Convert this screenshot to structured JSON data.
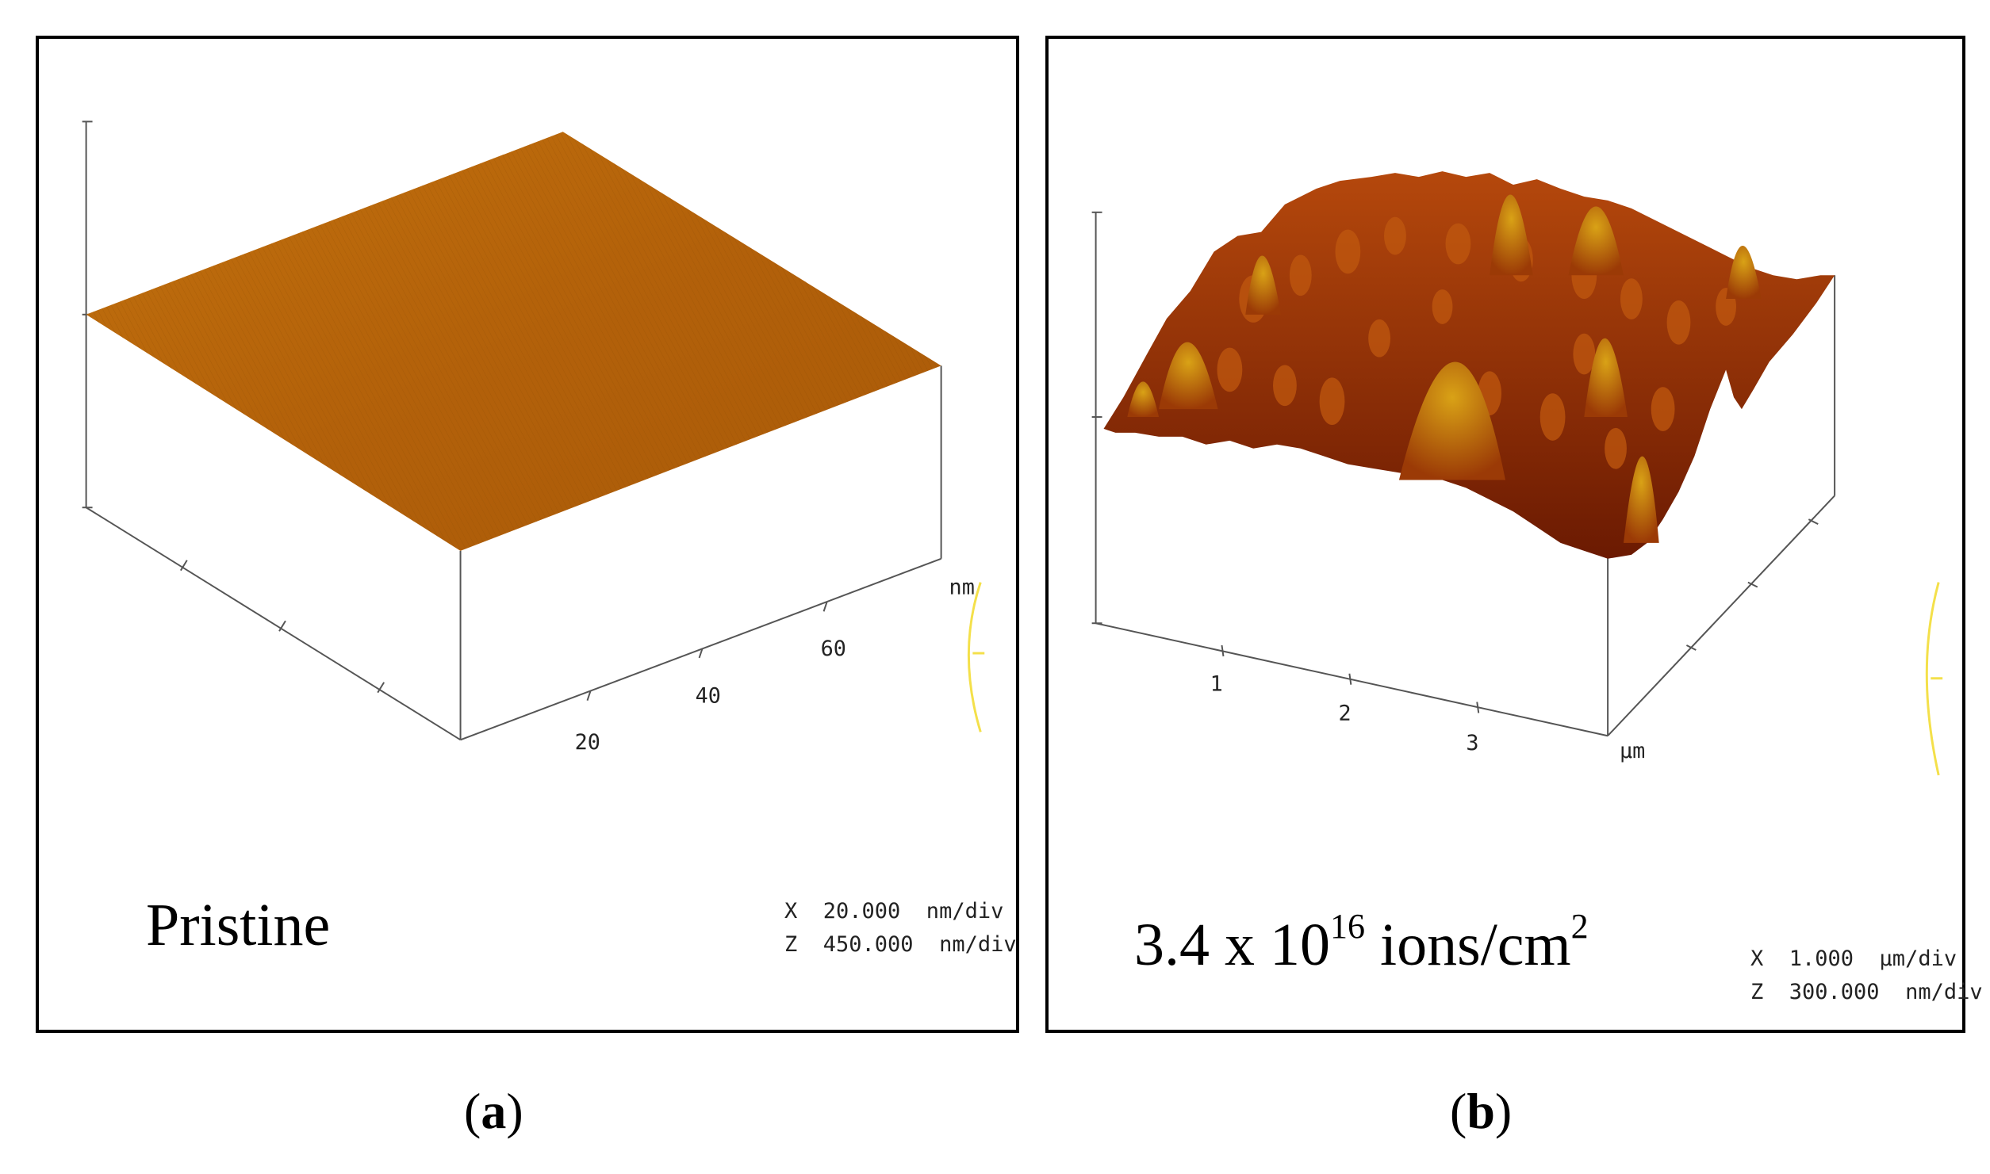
{
  "panel_a": {
    "sample_label": "Pristine",
    "scale_x": "X  20.000  nm/div",
    "scale_z": "Z  450.000  nm/div",
    "axis_ticks": [
      "20",
      "40",
      "60"
    ],
    "axis_unit": "nm",
    "caption_letter": "a",
    "surface_color": "#b4640a"
  },
  "panel_b": {
    "sample_label_base": "3.4 x 10",
    "sample_label_exp": "16",
    "sample_label_unit": " ions/cm",
    "sample_label_unit_exp": "2",
    "scale_x": "X  1.000  µm/div",
    "scale_z": "Z  300.000  nm/div",
    "axis_ticks": [
      "1",
      "2",
      "3"
    ],
    "axis_unit": "µm",
    "caption_letter": "b",
    "surface_color": "#8a2a05",
    "peak_color": "#c98a10"
  },
  "paren_open": "(",
  "paren_close": ")"
}
